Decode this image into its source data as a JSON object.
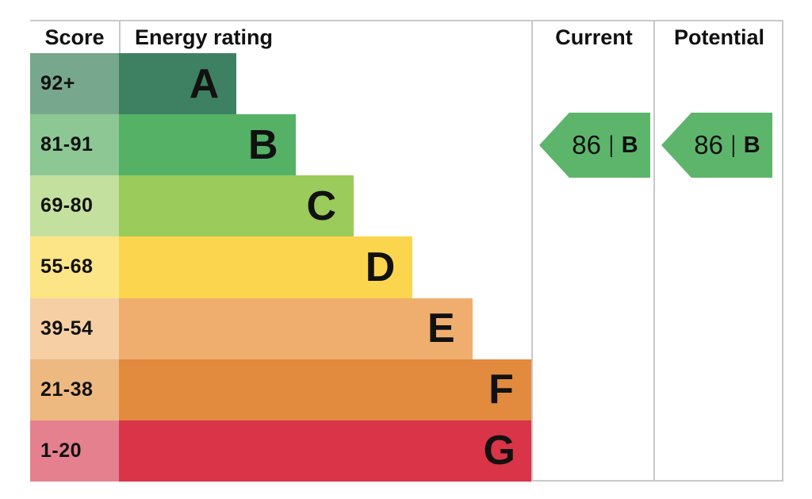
{
  "headers": {
    "score": "Score",
    "energy_rating": "Energy rating",
    "current": "Current",
    "potential": "Potential"
  },
  "arrow_divider": "|",
  "colors": {
    "grid_line": "#c9c9c9",
    "arrow_green": "#5db56c",
    "text": "#111111"
  },
  "chart_data": {
    "type": "bar",
    "title": "EPC Energy rating chart",
    "legend_position": "none",
    "grid": "table-lines",
    "bands": [
      {
        "letter": "A",
        "range": "92+",
        "bar_color": "#3e8162",
        "score_color": "#77a78d",
        "bar_pct": 23.4
      },
      {
        "letter": "B",
        "range": "81-91",
        "bar_color": "#55b166",
        "score_color": "#8cc794",
        "bar_pct": 35.1
      },
      {
        "letter": "C",
        "range": "69-80",
        "bar_color": "#9bcb5a",
        "score_color": "#c3e09e",
        "bar_pct": 46.7
      },
      {
        "letter": "D",
        "range": "55-68",
        "bar_color": "#fbd54e",
        "score_color": "#fce586",
        "bar_pct": 58.4
      },
      {
        "letter": "E",
        "range": "39-54",
        "bar_color": "#f0ae6e",
        "score_color": "#f6cfa5",
        "bar_pct": 70.3
      },
      {
        "letter": "F",
        "range": "21-38",
        "bar_color": "#e28a3e",
        "score_color": "#edb981",
        "bar_pct": 82.0
      },
      {
        "letter": "G",
        "range": "1-20",
        "bar_color": "#d93448",
        "score_color": "#e5808f",
        "bar_pct": 93.9
      }
    ],
    "current": {
      "value": "86",
      "letter": "B",
      "band_row": 1,
      "color": "#5db56c"
    },
    "potential": {
      "value": "86",
      "letter": "B",
      "band_row": 1,
      "color": "#5db56c"
    }
  }
}
